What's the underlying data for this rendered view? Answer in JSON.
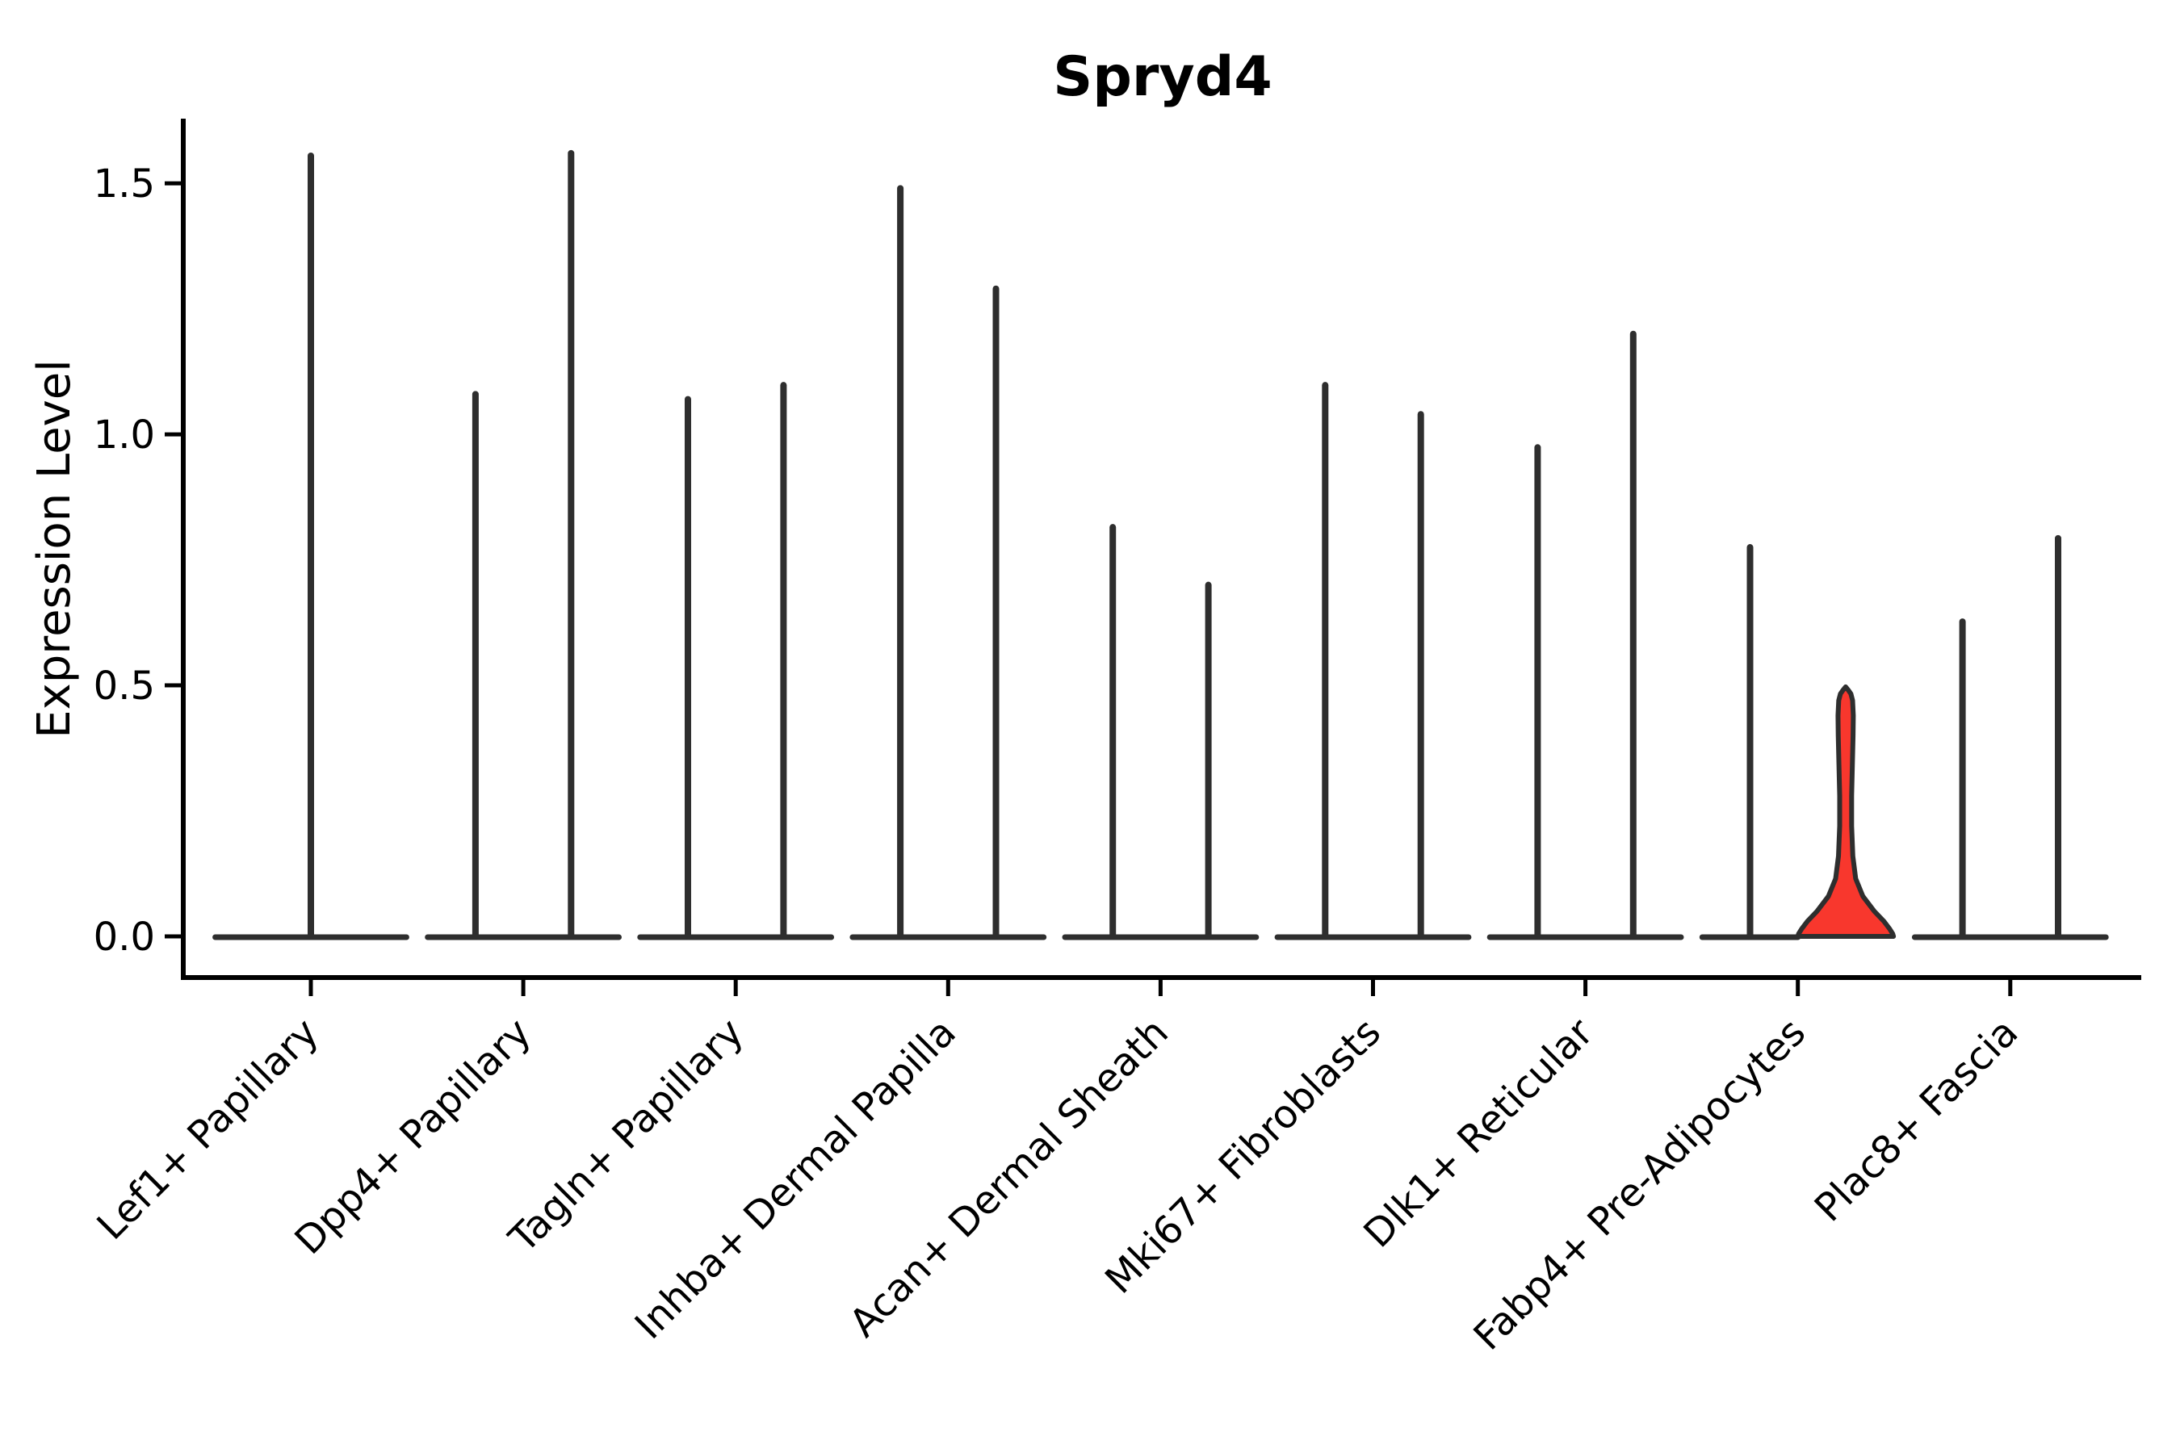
{
  "chart_data": {
    "type": "violin",
    "title": "Spryd4",
    "ylabel": "Expression Level",
    "xlabel": "",
    "yticks": [
      "0.0",
      "0.5",
      "1.0",
      "1.5"
    ],
    "ytick_values": [
      0.0,
      0.5,
      1.0,
      1.5
    ],
    "ylim": [
      -0.08,
      1.63
    ],
    "grid": false,
    "legend": null,
    "layout_hints": {
      "x_tick_label_rotation_deg": 45,
      "violins_per_category": "1 for first category, 2 side-by-side for all others",
      "violin_style": "collapsed thin spikes with flat base at 0; one filled highlighted violin"
    },
    "colors": {
      "background": "#ffffff",
      "axis": "#000000",
      "violin_line": "#2e2e2e",
      "highlight_fill": "#f8372d",
      "highlight_outline": "#2e2e2e"
    },
    "categories": [
      "Lef1+ Papillary",
      "Dpp4+ Papillary",
      "Tagln+ Papillary",
      "Inhba+ Dermal Papilla",
      "Acan+ Dermal Sheath",
      "Mki67+ Fibroblasts",
      "Dlk1+ Reticular",
      "Fabp4+ Pre-Adipocytes",
      "Plac8+ Fascia"
    ],
    "violins": [
      {
        "category": "Lef1+ Papillary",
        "cells": [
          {
            "max": 1.555
          }
        ]
      },
      {
        "category": "Dpp4+ Papillary",
        "cells": [
          {
            "max": 1.08
          },
          {
            "max": 1.56
          }
        ]
      },
      {
        "category": "Tagln+ Papillary",
        "cells": [
          {
            "max": 1.07
          },
          {
            "max": 1.098
          }
        ]
      },
      {
        "category": "Inhba+ Dermal Papilla",
        "cells": [
          {
            "max": 1.49
          },
          {
            "max": 1.29
          }
        ]
      },
      {
        "category": "Acan+ Dermal Sheath",
        "cells": [
          {
            "max": 0.815
          },
          {
            "max": 0.7
          }
        ]
      },
      {
        "category": "Mki67+ Fibroblasts",
        "cells": [
          {
            "max": 1.098
          },
          {
            "max": 1.04
          }
        ]
      },
      {
        "category": "Dlk1+ Reticular",
        "cells": [
          {
            "max": 0.974
          },
          {
            "max": 1.2
          }
        ]
      },
      {
        "category": "Fabp4+ Pre-Adipocytes",
        "cells": [
          {
            "max": 0.775
          },
          {
            "max": 0.493,
            "highlight": true
          }
        ]
      },
      {
        "category": "Plac8+ Fascia",
        "cells": [
          {
            "max": 0.627
          },
          {
            "max": 0.793
          }
        ]
      }
    ],
    "highlight_profile": [
      [
        0.497,
        0.0
      ],
      [
        0.49,
        0.06
      ],
      [
        0.483,
        0.11
      ],
      [
        0.47,
        0.145
      ],
      [
        0.44,
        0.16
      ],
      [
        0.4,
        0.155
      ],
      [
        0.34,
        0.14
      ],
      [
        0.28,
        0.125
      ],
      [
        0.22,
        0.125
      ],
      [
        0.16,
        0.15
      ],
      [
        0.115,
        0.21
      ],
      [
        0.08,
        0.36
      ],
      [
        0.05,
        0.6
      ],
      [
        0.03,
        0.8
      ],
      [
        0.015,
        0.92
      ],
      [
        0.005,
        0.985
      ],
      [
        0.0,
        1.0
      ]
    ]
  }
}
